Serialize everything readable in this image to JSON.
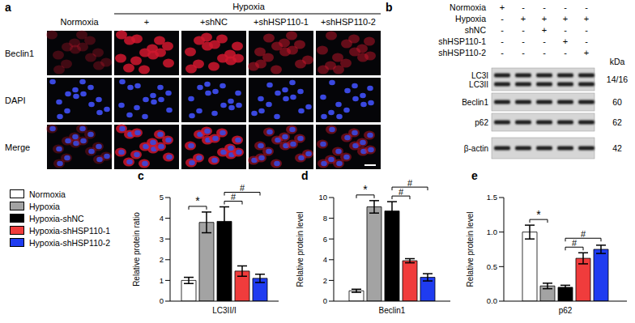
{
  "panel_a": {
    "label": "a",
    "group_header": "Hypoxia",
    "columns": [
      "Normoxia",
      "+",
      "+shNC",
      "+shHSP110-1",
      "+shHSP110-2"
    ],
    "rows": [
      "Beclin1",
      "DAPI",
      "Merge"
    ]
  },
  "panel_b": {
    "label": "b",
    "conditions": [
      {
        "label": "Normoxia",
        "marks": [
          "+",
          "-",
          "-",
          "-",
          "-"
        ]
      },
      {
        "label": "Hypoxia",
        "marks": [
          "-",
          "+",
          "+",
          "+",
          "+"
        ]
      },
      {
        "label": "shNC",
        "marks": [
          "-",
          "-",
          "+",
          "-",
          "-"
        ]
      },
      {
        "label": "shHSP110-1",
        "marks": [
          "-",
          "-",
          "-",
          "+",
          "-"
        ]
      },
      {
        "label": "shHSP110-2",
        "marks": [
          "-",
          "-",
          "-",
          "-",
          "+"
        ]
      }
    ],
    "kda_header": "kDa",
    "bands": [
      {
        "labels": [
          "LC3I",
          "LC3II"
        ],
        "kda": "14/16"
      },
      {
        "labels": [
          "Beclin1"
        ],
        "kda": "60"
      },
      {
        "labels": [
          "p62"
        ],
        "kda": "62"
      },
      {
        "labels": [
          "β-actin"
        ],
        "kda": "42"
      }
    ]
  },
  "chart_data": [
    {
      "panel": "c",
      "type": "bar",
      "categories": [
        "LC3II/I"
      ],
      "y_label": "Relative protein ratio",
      "ylim": [
        0,
        5
      ],
      "yticks": [
        0,
        1,
        2,
        3,
        4,
        5
      ],
      "series": [
        {
          "name": "Normoxia",
          "color": "#ffffff",
          "values": [
            1.0
          ],
          "errors": [
            0.15
          ]
        },
        {
          "name": "Hypoxia",
          "color": "#a3a3a3",
          "values": [
            3.8
          ],
          "errors": [
            0.5
          ]
        },
        {
          "name": "Hypoxia-shNC",
          "color": "#000000",
          "values": [
            3.85
          ],
          "errors": [
            0.7
          ]
        },
        {
          "name": "Hypoxia-shHSP110-1",
          "color": "#f03c3c",
          "values": [
            1.45
          ],
          "errors": [
            0.25
          ]
        },
        {
          "name": "Hypoxia-shHSP110-2",
          "color": "#1f3cf0",
          "values": [
            1.1
          ],
          "errors": [
            0.2
          ]
        }
      ],
      "annotations": [
        {
          "text": "*",
          "from": "Normoxia",
          "to": "Hypoxia"
        },
        {
          "text": "#",
          "from": "Hypoxia-shNC",
          "to": "Hypoxia-shHSP110-1"
        },
        {
          "text": "#",
          "from": "Hypoxia-shNC",
          "to": "Hypoxia-shHSP110-2"
        }
      ]
    },
    {
      "panel": "d",
      "type": "bar",
      "categories": [
        "Beclin1"
      ],
      "y_label": "Relative protein level",
      "ylim": [
        0,
        10
      ],
      "yticks": [
        0,
        2,
        4,
        6,
        8,
        10
      ],
      "series": [
        {
          "name": "Normoxia",
          "color": "#ffffff",
          "values": [
            1.0
          ],
          "errors": [
            0.15
          ]
        },
        {
          "name": "Hypoxia",
          "color": "#a3a3a3",
          "values": [
            9.1
          ],
          "errors": [
            0.6
          ]
        },
        {
          "name": "Hypoxia-shNC",
          "color": "#000000",
          "values": [
            8.7
          ],
          "errors": [
            0.9
          ]
        },
        {
          "name": "Hypoxia-shHSP110-1",
          "color": "#f03c3c",
          "values": [
            3.9
          ],
          "errors": [
            0.2
          ]
        },
        {
          "name": "Hypoxia-shHSP110-2",
          "color": "#1f3cf0",
          "values": [
            2.3
          ],
          "errors": [
            0.35
          ]
        }
      ],
      "annotations": [
        {
          "text": "*",
          "from": "Normoxia",
          "to": "Hypoxia"
        },
        {
          "text": "#",
          "from": "Hypoxia-shNC",
          "to": "Hypoxia-shHSP110-1"
        },
        {
          "text": "#",
          "from": "Hypoxia-shNC",
          "to": "Hypoxia-shHSP110-2"
        }
      ]
    },
    {
      "panel": "e",
      "type": "bar",
      "categories": [
        "p62"
      ],
      "y_label": "Relative protein level",
      "ylim": [
        0,
        1.5
      ],
      "yticks": [
        {
          "value": 0,
          "label": "0.0"
        },
        0.5,
        {
          "value": 1,
          "label": "1.0"
        },
        1.5
      ],
      "series": [
        {
          "name": "Normoxia",
          "color": "#ffffff",
          "values": [
            1.0
          ],
          "errors": [
            0.1
          ]
        },
        {
          "name": "Hypoxia",
          "color": "#a3a3a3",
          "values": [
            0.22
          ],
          "errors": [
            0.04
          ]
        },
        {
          "name": "Hypoxia-shNC",
          "color": "#000000",
          "values": [
            0.2
          ],
          "errors": [
            0.03
          ]
        },
        {
          "name": "Hypoxia-shHSP110-1",
          "color": "#f03c3c",
          "values": [
            0.62
          ],
          "errors": [
            0.08
          ]
        },
        {
          "name": "Hypoxia-shHSP110-2",
          "color": "#1f3cf0",
          "values": [
            0.75
          ],
          "errors": [
            0.06
          ]
        }
      ],
      "annotations": [
        {
          "text": "*",
          "from": "Normoxia",
          "to": "Hypoxia"
        },
        {
          "text": "#",
          "from": "Hypoxia-shNC",
          "to": "Hypoxia-shHSP110-1"
        },
        {
          "text": "#",
          "from": "Hypoxia-shNC",
          "to": "Hypoxia-shHSP110-2"
        }
      ]
    }
  ]
}
